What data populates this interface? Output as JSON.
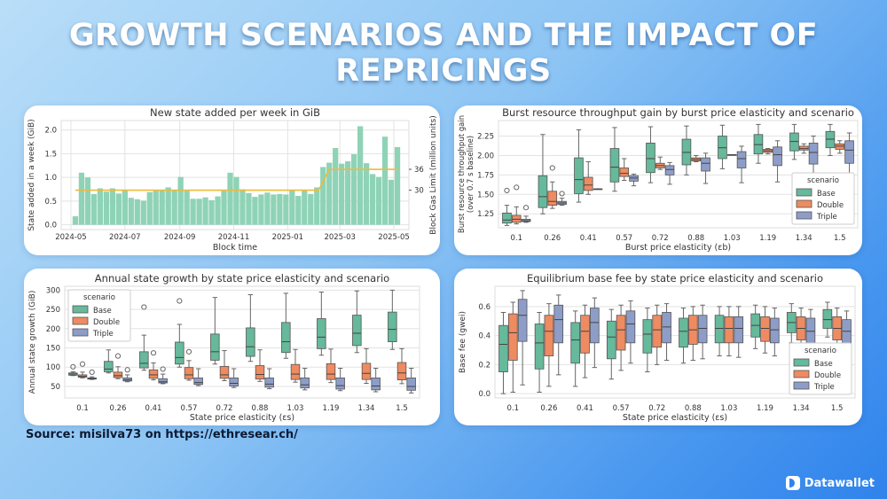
{
  "title": "GROWTH SCENARIOS AND THE IMPACT OF REPRICINGS",
  "source": "Source: misilva73 on https://ethresear.ch/",
  "brand": "Datawallet",
  "colors": {
    "Base": "#66b99b",
    "Double": "#ee8b61",
    "Triple": "#8e9dc8",
    "bar": "#8fd3b6",
    "gas_line": "#f0b93c"
  },
  "chart_data": [
    {
      "type": "bar",
      "title": "New state added per week in GiB",
      "xlabel": "Block time",
      "ylabel": "State added in a week (GiB)",
      "y2label": "Block Gas Limit (million units)",
      "ylim": [
        -0.1,
        2.2
      ],
      "y2lim": [
        18.7,
        50
      ],
      "grid": true,
      "x_ticks": [
        "2024-05",
        "2024-07",
        "2024-09",
        "2024-11",
        "2025-01",
        "2025-03",
        "2025-05"
      ],
      "y_ticks": [
        "0.0",
        "0.5",
        "1.0",
        "1.5",
        "2.0"
      ],
      "y2_ticks": [
        "30",
        "36"
      ],
      "weeks": [
        "2024-05-06",
        "2024-05-13",
        "2024-05-20",
        "2024-05-27",
        "2024-06-03",
        "2024-06-10",
        "2024-06-17",
        "2024-06-24",
        "2024-07-01",
        "2024-07-08",
        "2024-07-15",
        "2024-07-22",
        "2024-07-29",
        "2024-08-05",
        "2024-08-12",
        "2024-08-19",
        "2024-08-26",
        "2024-09-02",
        "2024-09-09",
        "2024-09-16",
        "2024-09-23",
        "2024-09-30",
        "2024-10-07",
        "2024-10-14",
        "2024-10-21",
        "2024-10-28",
        "2024-11-04",
        "2024-11-11",
        "2024-11-18",
        "2024-11-25",
        "2024-12-02",
        "2024-12-09",
        "2024-12-16",
        "2024-12-23",
        "2024-12-30",
        "2025-01-06",
        "2025-01-13",
        "2025-01-20",
        "2025-01-27",
        "2025-02-03",
        "2025-02-10",
        "2025-02-17",
        "2025-02-24",
        "2025-03-03",
        "2025-03-10",
        "2025-03-17",
        "2025-03-24",
        "2025-03-31",
        "2025-04-07",
        "2025-04-14",
        "2025-04-21",
        "2025-04-28",
        "2025-05-05"
      ],
      "values": [
        0.18,
        1.1,
        1.0,
        0.65,
        0.77,
        0.7,
        0.77,
        0.66,
        0.73,
        0.57,
        0.54,
        0.51,
        0.69,
        0.72,
        0.73,
        0.79,
        0.73,
        1.01,
        0.72,
        0.55,
        0.55,
        0.58,
        0.52,
        0.6,
        0.72,
        1.1,
        1.01,
        0.75,
        0.67,
        0.59,
        0.64,
        0.68,
        0.64,
        0.65,
        0.64,
        0.74,
        0.61,
        0.72,
        0.65,
        0.79,
        1.22,
        1.31,
        1.62,
        1.29,
        1.34,
        1.49,
        2.08,
        1.3,
        1.07,
        1.01,
        1.86,
        0.95,
        1.64
      ],
      "gas_limit": [
        [
          "2024-05-06",
          30
        ],
        [
          "2025-02-05",
          30
        ],
        [
          "2025-02-17",
          36
        ],
        [
          "2025-05-05",
          36
        ]
      ]
    },
    {
      "type": "box",
      "title": "Burst resource throughput gain by burst price elasticity and scenario",
      "xlabel": "Burst price elasticity (εb)",
      "ylabel": "Burst resource throughput gain",
      "ylabel2": "(over 0.7 s baseline)",
      "ylim": [
        1.07,
        2.45
      ],
      "y_ticks": [
        "1.25",
        "1.50",
        "1.75",
        "2.00",
        "2.25"
      ],
      "legend": {
        "title": "scenario",
        "position": "bottom-right"
      },
      "categories": [
        "0.1",
        "0.26",
        "0.41",
        "0.57",
        "0.72",
        "0.88",
        "1.03",
        "1.19",
        "1.34",
        "1.5"
      ],
      "series": [
        {
          "name": "Base",
          "boxes": [
            [
              1.1,
              1.13,
              1.17,
              1.26,
              1.36,
              [
                1.55
              ]
            ],
            [
              1.25,
              1.33,
              1.47,
              1.74,
              2.27,
              []
            ],
            [
              1.4,
              1.51,
              1.69,
              1.97,
              2.33,
              []
            ],
            [
              1.54,
              1.66,
              1.85,
              2.09,
              2.36,
              []
            ],
            [
              1.65,
              1.78,
              1.96,
              2.16,
              2.37,
              []
            ],
            [
              1.75,
              1.88,
              2.04,
              2.21,
              2.38,
              []
            ],
            [
              1.83,
              1.96,
              2.1,
              2.25,
              2.39,
              []
            ],
            [
              1.9,
              2.02,
              2.14,
              2.27,
              2.4,
              []
            ],
            [
              1.95,
              2.06,
              2.18,
              2.29,
              2.4,
              []
            ],
            [
              2.0,
              2.1,
              2.21,
              2.31,
              2.4,
              []
            ]
          ]
        },
        {
          "name": "Double",
          "boxes": [
            [
              1.12,
              1.14,
              1.18,
              1.23,
              1.34,
              [
                1.59
              ]
            ],
            [
              1.32,
              1.36,
              1.41,
              1.54,
              1.66,
              [
                1.84
              ]
            ],
            [
              1.5,
              1.55,
              1.62,
              1.72,
              1.92,
              []
            ],
            [
              1.68,
              1.73,
              1.77,
              1.84,
              1.96,
              []
            ],
            [
              1.82,
              1.84,
              1.87,
              1.9,
              1.98,
              []
            ],
            [
              1.92,
              1.93,
              1.95,
              1.97,
              2.0,
              []
            ],
            [
              2.01,
              2.01,
              2.01,
              2.01,
              2.01,
              []
            ],
            [
              2.02,
              2.04,
              2.06,
              2.08,
              2.09,
              []
            ],
            [
              2.03,
              2.07,
              2.09,
              2.12,
              2.15,
              []
            ],
            [
              2.03,
              2.08,
              2.12,
              2.15,
              2.19,
              []
            ]
          ]
        },
        {
          "name": "Triple",
          "boxes": [
            [
              1.14,
              1.15,
              1.16,
              1.18,
              1.22,
              [
                1.33
              ]
            ],
            [
              1.36,
              1.37,
              1.39,
              1.41,
              1.45,
              [
                1.51
              ]
            ],
            [
              1.57,
              1.57,
              1.57,
              1.57,
              1.57,
              []
            ],
            [
              1.61,
              1.67,
              1.71,
              1.74,
              1.76,
              []
            ],
            [
              1.63,
              1.75,
              1.82,
              1.87,
              1.91,
              []
            ],
            [
              1.64,
              1.8,
              1.9,
              1.97,
              2.03,
              []
            ],
            [
              1.65,
              1.84,
              1.96,
              2.05,
              2.12,
              []
            ],
            [
              1.66,
              1.87,
              2.01,
              2.11,
              2.19,
              []
            ],
            [
              1.66,
              1.89,
              2.04,
              2.16,
              2.25,
              []
            ],
            [
              1.67,
              1.9,
              2.07,
              2.19,
              2.29,
              []
            ]
          ]
        }
      ]
    },
    {
      "type": "box",
      "title": "Annual state growth by state price elasticity and scenario",
      "xlabel": "State price elasticity (εs)",
      "ylabel": "Annual state growth (GiB)",
      "ylim": [
        20,
        310
      ],
      "y_ticks": [
        "50",
        "100",
        "150",
        "200",
        "250",
        "300"
      ],
      "legend": {
        "title": "scenario",
        "position": "top-left"
      },
      "categories": [
        "0.1",
        "0.26",
        "0.41",
        "0.57",
        "0.72",
        "0.88",
        "1.03",
        "1.19",
        "1.34",
        "1.5"
      ],
      "series": [
        {
          "name": "Base",
          "boxes": [
            [
              78,
              79,
              82,
              85,
              88,
              [
                101
              ]
            ],
            [
              85,
              88,
              95,
              115,
              145,
              []
            ],
            [
              92,
              98,
              110,
              140,
              183,
              [
                256
              ]
            ],
            [
              100,
              108,
              125,
              165,
              211,
              [
                272
              ]
            ],
            [
              108,
              118,
              140,
              186,
              281,
              []
            ],
            [
              115,
              128,
              153,
              202,
              288,
              []
            ],
            [
              123,
              138,
              166,
              216,
              292,
              []
            ],
            [
              131,
              148,
              178,
              226,
              295,
              []
            ],
            [
              138,
              156,
              188,
              235,
              298,
              []
            ],
            [
              146,
              166,
              198,
              243,
              300,
              []
            ]
          ]
        },
        {
          "name": "Double",
          "boxes": [
            [
              72,
              74,
              76,
              80,
              87,
              [
                108
              ]
            ],
            [
              70,
              73,
              78,
              87,
              101,
              [
                129
              ]
            ],
            [
              67,
              71,
              80,
              93,
              111,
              [
                137
              ]
            ],
            [
              66,
              70,
              80,
              99,
              117,
              [
                140
              ]
            ],
            [
              65,
              71,
              80,
              102,
              143,
              []
            ],
            [
              63,
              69,
              81,
              104,
              145,
              []
            ],
            [
              61,
              68,
              82,
              107,
              146,
              []
            ],
            [
              60,
              68,
              82,
              109,
              147,
              []
            ],
            [
              58,
              68,
              84,
              110,
              148,
              []
            ],
            [
              57,
              67,
              85,
              112,
              148,
              []
            ]
          ]
        },
        {
          "name": "Triple",
          "boxes": [
            [
              68,
              69,
              71,
              72,
              75,
              [
                87
              ]
            ],
            [
              62,
              64,
              67,
              72,
              80,
              [
                93
              ]
            ],
            [
              57,
              59,
              62,
              70,
              82,
              [
                95
              ]
            ],
            [
              52,
              55,
              60,
              72,
              96,
              []
            ],
            [
              47,
              51,
              58,
              72,
              96,
              []
            ],
            [
              44,
              48,
              56,
              72,
              96,
              []
            ],
            [
              41,
              46,
              54,
              72,
              97,
              []
            ],
            [
              39,
              43,
              52,
              72,
              97,
              []
            ],
            [
              36,
              41,
              51,
              72,
              97,
              []
            ],
            [
              33,
              40,
              50,
              72,
              97,
              []
            ]
          ]
        }
      ]
    },
    {
      "type": "box",
      "title": "Equilibrium base fee by state price elasticity and scenario",
      "xlabel": "State price elasticity (εs)",
      "ylabel": "Base fee (gwei)",
      "ylim": [
        -0.03,
        0.74
      ],
      "y_ticks": [
        "0.0",
        "0.2",
        "0.4",
        "0.6"
      ],
      "legend": {
        "title": "scenario",
        "position": "bottom-right"
      },
      "categories": [
        "0.1",
        "0.26",
        "0.41",
        "0.57",
        "0.72",
        "0.88",
        "1.03",
        "1.19",
        "1.34",
        "1.5"
      ],
      "series": [
        {
          "name": "Base",
          "boxes": [
            [
              0.0,
              0.15,
              0.34,
              0.47,
              0.56,
              []
            ],
            [
              0.01,
              0.17,
              0.35,
              0.48,
              0.56,
              []
            ],
            [
              0.05,
              0.21,
              0.37,
              0.49,
              0.57,
              []
            ],
            [
              0.1,
              0.24,
              0.39,
              0.5,
              0.58,
              []
            ],
            [
              0.15,
              0.28,
              0.41,
              0.51,
              0.59,
              []
            ],
            [
              0.21,
              0.32,
              0.43,
              0.52,
              0.59,
              []
            ],
            [
              0.26,
              0.35,
              0.45,
              0.54,
              0.6,
              []
            ],
            [
              0.31,
              0.39,
              0.47,
              0.55,
              0.61,
              []
            ],
            [
              0.35,
              0.42,
              0.49,
              0.56,
              0.62,
              []
            ],
            [
              0.39,
              0.45,
              0.51,
              0.58,
              0.63,
              []
            ]
          ]
        },
        {
          "name": "Double",
          "boxes": [
            [
              0.01,
              0.23,
              0.42,
              0.55,
              0.63,
              []
            ],
            [
              0.05,
              0.26,
              0.43,
              0.54,
              0.62,
              []
            ],
            [
              0.11,
              0.28,
              0.43,
              0.54,
              0.61,
              []
            ],
            [
              0.16,
              0.3,
              0.44,
              0.54,
              0.61,
              []
            ],
            [
              0.2,
              0.32,
              0.44,
              0.54,
              0.61,
              []
            ],
            [
              0.23,
              0.34,
              0.44,
              0.54,
              0.6,
              []
            ],
            [
              0.26,
              0.35,
              0.45,
              0.53,
              0.6,
              []
            ],
            [
              0.28,
              0.36,
              0.45,
              0.53,
              0.6,
              []
            ],
            [
              0.3,
              0.37,
              0.45,
              0.53,
              0.59,
              []
            ],
            [
              0.31,
              0.37,
              0.45,
              0.53,
              0.59,
              []
            ]
          ]
        },
        {
          "name": "Triple",
          "boxes": [
            [
              0.06,
              0.36,
              0.54,
              0.65,
              0.71,
              []
            ],
            [
              0.13,
              0.35,
              0.51,
              0.61,
              0.68,
              []
            ],
            [
              0.18,
              0.35,
              0.49,
              0.59,
              0.66,
              []
            ],
            [
              0.21,
              0.35,
              0.48,
              0.57,
              0.64,
              []
            ],
            [
              0.23,
              0.35,
              0.46,
              0.56,
              0.62,
              []
            ],
            [
              0.24,
              0.35,
              0.45,
              0.54,
              0.61,
              []
            ],
            [
              0.25,
              0.35,
              0.45,
              0.53,
              0.6,
              []
            ],
            [
              0.26,
              0.35,
              0.44,
              0.52,
              0.59,
              []
            ],
            [
              0.27,
              0.34,
              0.43,
              0.52,
              0.58,
              []
            ],
            [
              0.28,
              0.34,
              0.43,
              0.51,
              0.57,
              []
            ]
          ]
        }
      ]
    }
  ]
}
